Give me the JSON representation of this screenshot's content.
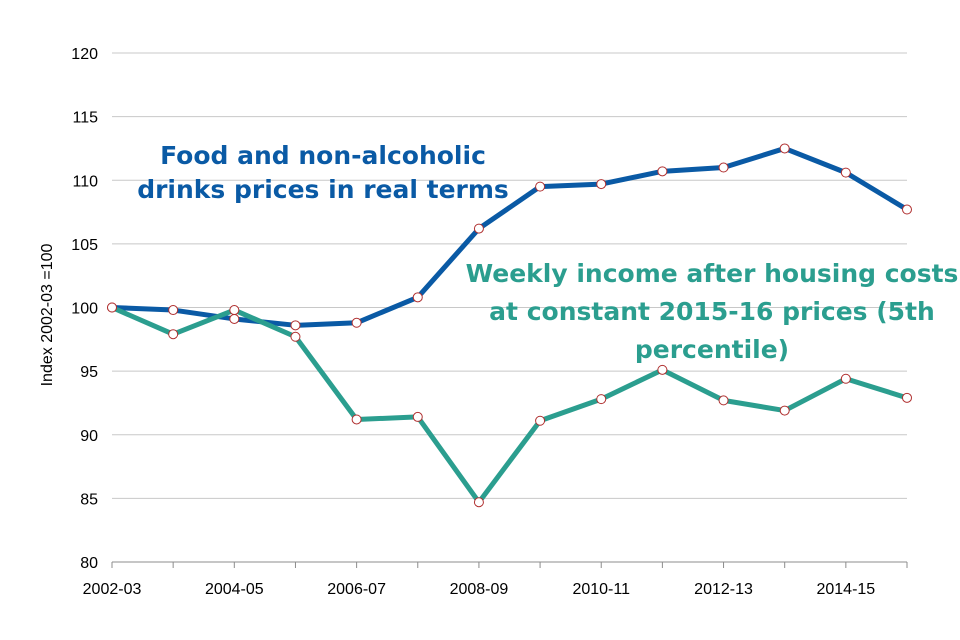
{
  "chart_data": {
    "type": "line",
    "title": "",
    "xlabel": "",
    "ylabel": "Index 2002-03 =100",
    "ylim": [
      80,
      120
    ],
    "yticks": [
      80,
      85,
      90,
      95,
      100,
      105,
      110,
      115,
      120
    ],
    "grid": true,
    "legend": "none",
    "x": [
      "2002-03",
      "2003-04",
      "2004-05",
      "2005-06",
      "2006-07",
      "2007-08",
      "2008-09",
      "2009-10",
      "2010-11",
      "2011-12",
      "2012-13",
      "2013-14",
      "2014-15",
      "2015-16"
    ],
    "xtick_labels": [
      "2002-03",
      "",
      "2004-05",
      "",
      "2006-07",
      "",
      "2008-09",
      "",
      "2010-11",
      "",
      "2012-13",
      "",
      "2014-15",
      ""
    ],
    "series": [
      {
        "id": "food",
        "color": "#0a5aa5",
        "values": [
          100,
          99.8,
          99.1,
          98.6,
          98.8,
          100.8,
          106.2,
          109.5,
          109.7,
          110.7,
          111.0,
          112.5,
          110.6,
          107.7
        ]
      },
      {
        "id": "income",
        "color": "#2b9e8f",
        "values": [
          100,
          97.9,
          99.8,
          97.7,
          91.2,
          91.4,
          84.7,
          91.1,
          92.8,
          95.1,
          92.7,
          91.9,
          94.4,
          92.9
        ]
      }
    ],
    "annotations": [
      {
        "series": "food",
        "lines": [
          "Food and non-alcoholic",
          "drinks prices in real terms"
        ],
        "color": "#0a5aa5"
      },
      {
        "series": "income",
        "lines": [
          "Weekly income after housing costs",
          "at constant 2015-16 prices (5th",
          "percentile)"
        ],
        "color": "#2b9e8f"
      }
    ]
  }
}
